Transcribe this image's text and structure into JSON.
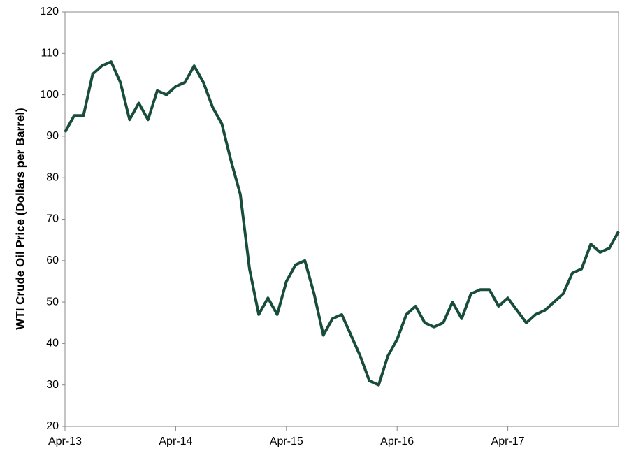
{
  "chart_data": {
    "type": "line",
    "y_label": "WTI Crude Oil Price (Dollars per Barrel)",
    "categories": [
      "Apr-13",
      null,
      null,
      null,
      null,
      null,
      null,
      null,
      null,
      null,
      null,
      null,
      "Apr-14",
      null,
      null,
      null,
      null,
      null,
      null,
      null,
      null,
      null,
      null,
      null,
      "Apr-15",
      null,
      null,
      null,
      null,
      null,
      null,
      null,
      null,
      null,
      null,
      null,
      "Apr-16",
      null,
      null,
      null,
      null,
      null,
      null,
      null,
      null,
      null,
      null,
      null,
      "Apr-17",
      null,
      null,
      null,
      null,
      null,
      null,
      null,
      null,
      null,
      null,
      null,
      null
    ],
    "values": [
      91,
      95,
      95,
      105,
      107,
      108,
      103,
      94,
      98,
      94,
      101,
      100,
      102,
      103,
      107,
      103,
      97,
      93,
      84,
      76,
      58,
      47,
      51,
      47,
      55,
      59,
      60,
      52,
      42,
      46,
      47,
      42,
      37,
      31,
      30,
      37,
      41,
      47,
      49,
      45,
      44,
      45,
      50,
      46,
      52,
      53,
      53,
      49,
      51,
      48,
      45,
      47,
      48,
      50,
      52,
      57,
      58,
      64,
      62,
      63,
      67
    ],
    "color": "#174d3a",
    "ylim": [
      20,
      120
    ],
    "yticks": [
      20,
      30,
      40,
      50,
      60,
      70,
      80,
      90,
      100,
      110,
      120
    ]
  }
}
